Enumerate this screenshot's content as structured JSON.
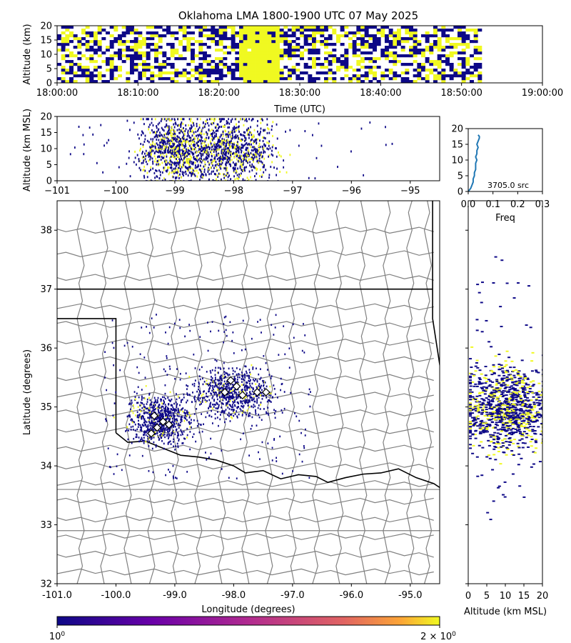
{
  "colors": {
    "low": "#0d0887",
    "high": "#f0f921",
    "hist_line": "#1f77b4",
    "county": "#808080"
  },
  "title": "Oklahoma LMA 1800-1900 UTC 07 May 2025",
  "chart_data": [
    {
      "id": "time_height",
      "type": "heatmap",
      "xlabel": "Time (UTC)",
      "ylabel": "Altitude (km)",
      "xlim_minutes": [
        0,
        60
      ],
      "xticks": [
        "18:00:00",
        "18:10:00",
        "18:20:00",
        "18:30:00",
        "18:40:00",
        "18:50:00",
        "19:00:00"
      ],
      "ylim": [
        0,
        20
      ],
      "yticks": [
        "0",
        "5",
        "10",
        "15",
        "20"
      ],
      "activity_minutes": [
        0,
        52.5
      ],
      "dense_interval_minutes": [
        22.5,
        27.5
      ]
    },
    {
      "id": "lon_alt",
      "type": "heatmap",
      "ylabel": "Altitude (km MSL)",
      "xlim": [
        -101,
        -94.5
      ],
      "xticks": [
        "−101",
        "−100",
        "−99",
        "−98",
        "−97",
        "−96",
        "−95"
      ],
      "ylim": [
        0,
        20
      ],
      "yticks": [
        "0",
        "5",
        "10",
        "15",
        "20"
      ],
      "clusters": [
        {
          "lon": -99.0,
          "lon_spread": 0.3,
          "alt": 10,
          "alt_spread": 5
        },
        {
          "lon": -98.0,
          "lon_spread": 0.35,
          "alt": 10,
          "alt_spread": 5
        }
      ]
    },
    {
      "id": "alt_hist",
      "type": "line",
      "xlabel": "Freq",
      "xlim": [
        0,
        0.3
      ],
      "xticks": [
        "0.0",
        "0.1",
        "0.2",
        "0.3"
      ],
      "ylim": [
        0,
        20
      ],
      "yticks": [
        "0",
        "5",
        "10",
        "15",
        "20"
      ],
      "annotation": "3705.0 src",
      "profile": [
        [
          0.0,
          0
        ],
        [
          0.01,
          1
        ],
        [
          0.015,
          2
        ],
        [
          0.02,
          3
        ],
        [
          0.02,
          4
        ],
        [
          0.025,
          5
        ],
        [
          0.025,
          6
        ],
        [
          0.03,
          7
        ],
        [
          0.03,
          8
        ],
        [
          0.03,
          9
        ],
        [
          0.035,
          10
        ],
        [
          0.03,
          11
        ],
        [
          0.035,
          12
        ],
        [
          0.035,
          13
        ],
        [
          0.04,
          14
        ],
        [
          0.035,
          15
        ],
        [
          0.04,
          16
        ],
        [
          0.045,
          17
        ],
        [
          0.045,
          17.5
        ],
        [
          0.04,
          18
        ]
      ]
    },
    {
      "id": "plan_view",
      "type": "scatter",
      "xlabel": "Longitude (degrees)",
      "ylabel": "Latitude (degrees)",
      "xlim": [
        -101.0,
        -94.5
      ],
      "ylim": [
        32.0,
        38.5
      ],
      "xticks": [
        "-101.0",
        "-100.0",
        "-99.0",
        "-98.0",
        "-97.0",
        "-96.0",
        "-95.0"
      ],
      "yticks": [
        "32",
        "33",
        "34",
        "35",
        "36",
        "37",
        "38"
      ],
      "clusters": [
        {
          "lon": -99.25,
          "lat": 34.8,
          "lon_spread": 0.25,
          "lat_spread": 0.2
        },
        {
          "lon": -98.0,
          "lat": 35.25,
          "lon_spread": 0.35,
          "lat_spread": 0.2
        }
      ],
      "stations": [
        [
          -99.35,
          34.85
        ],
        [
          -99.2,
          34.75
        ],
        [
          -99.1,
          34.7
        ],
        [
          -99.3,
          34.65
        ],
        [
          -99.4,
          34.55
        ],
        [
          -98.05,
          35.45
        ],
        [
          -97.95,
          35.35
        ],
        [
          -97.85,
          35.2
        ],
        [
          -97.6,
          35.25
        ],
        [
          -97.45,
          35.25
        ],
        [
          -98.15,
          35.25
        ]
      ]
    },
    {
      "id": "alt_lat",
      "type": "heatmap",
      "xlabel": "Altitude (km MSL)",
      "xlim": [
        0,
        20
      ],
      "xticks": [
        "0",
        "5",
        "10",
        "15",
        "20"
      ],
      "ylim": [
        32.0,
        38.5
      ],
      "center_lat": 35.0,
      "lat_spread": 0.35
    },
    {
      "id": "colorbar",
      "type": "heatmap",
      "min_label": "10^0",
      "max_label": "2 × 10^0"
    }
  ]
}
